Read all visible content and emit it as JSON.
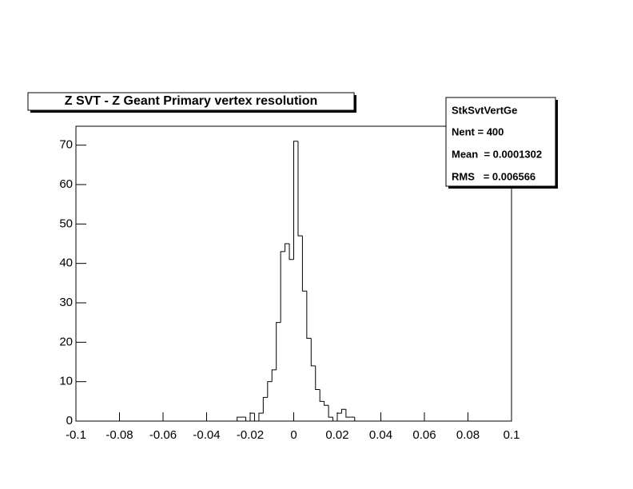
{
  "chart_data": {
    "type": "histogram",
    "title": "Z SVT - Z Geant Primary vertex resolution",
    "bins": [
      -0.1,
      -0.098,
      -0.096,
      -0.094,
      -0.092,
      -0.09,
      -0.088,
      -0.086,
      -0.084,
      -0.082,
      -0.08,
      -0.078,
      -0.076,
      -0.074,
      -0.072,
      -0.07,
      -0.068,
      -0.066,
      -0.064,
      -0.062,
      -0.06,
      -0.058,
      -0.056,
      -0.054,
      -0.052,
      -0.05,
      -0.048,
      -0.046,
      -0.044,
      -0.042,
      -0.04,
      -0.038,
      -0.036,
      -0.034,
      -0.032,
      -0.03,
      -0.028,
      -0.026,
      -0.024,
      -0.022,
      -0.02,
      -0.018,
      -0.016,
      -0.014,
      -0.012,
      -0.01,
      -0.008,
      -0.006,
      -0.004,
      -0.002,
      0,
      0.002,
      0.004,
      0.006,
      0.008,
      0.01,
      0.012,
      0.014,
      0.016,
      0.018,
      0.02,
      0.022,
      0.024,
      0.026,
      0.028,
      0.03,
      0.032,
      0.034,
      0.036,
      0.038,
      0.04,
      0.042,
      0.044,
      0.046,
      0.048,
      0.05,
      0.052,
      0.054,
      0.056,
      0.058,
      0.06,
      0.062,
      0.064,
      0.066,
      0.068,
      0.07,
      0.072,
      0.074,
      0.076,
      0.078,
      0.08,
      0.082,
      0.084,
      0.086,
      0.088,
      0.09,
      0.092,
      0.094,
      0.096,
      0.098,
      0.1
    ],
    "values": [
      0,
      0,
      0,
      0,
      0,
      0,
      0,
      0,
      0,
      0,
      0,
      0,
      0,
      0,
      0,
      0,
      0,
      0,
      0,
      0,
      0,
      0,
      0,
      0,
      0,
      0,
      0,
      0,
      0,
      0,
      0,
      0,
      0,
      0,
      0,
      0,
      0,
      1,
      1,
      0,
      2,
      0,
      2,
      6,
      10,
      13,
      25,
      43,
      45,
      41,
      71,
      47,
      33,
      21,
      14,
      8,
      5,
      4,
      1,
      0,
      2,
      3,
      1,
      1,
      0,
      0,
      0,
      0,
      0,
      0,
      0,
      0,
      0,
      0,
      0,
      0,
      0,
      0,
      0,
      0,
      0,
      0,
      0,
      0,
      0,
      0,
      0,
      0,
      0,
      0,
      0,
      0,
      0,
      0,
      0,
      0,
      0,
      0,
      0,
      0
    ],
    "color": "#000000",
    "xlim": [
      -0.1,
      0.1
    ],
    "xticks": [
      -0.1,
      -0.08,
      -0.06,
      -0.04,
      -0.02,
      0,
      0.02,
      0.04,
      0.06,
      0.08,
      0.1
    ],
    "ylim": [
      0,
      74.8
    ],
    "yticks": [
      0,
      10,
      20,
      30,
      40,
      50,
      60,
      70
    ],
    "stats": {
      "name": "StkSvtVertGe",
      "lines": [
        "Nent = 400",
        "Mean  = 0.0001302",
        "RMS   = 0.006566"
      ]
    }
  }
}
